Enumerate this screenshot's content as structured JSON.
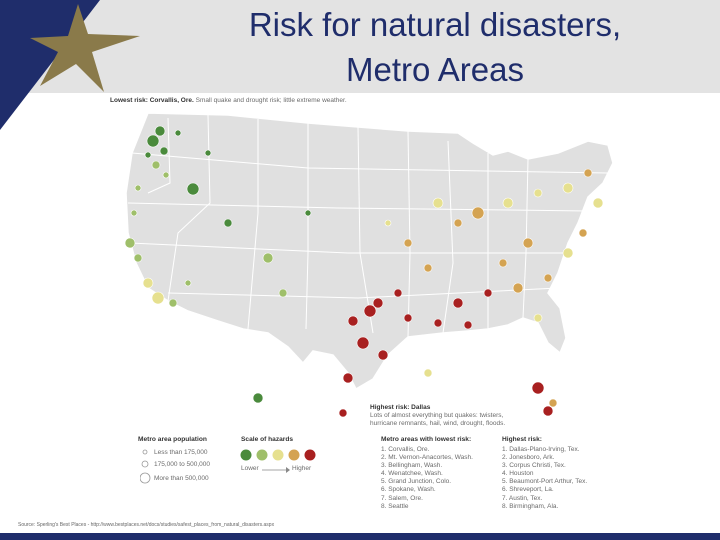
{
  "title": {
    "line1": "Risk for natural disasters,",
    "line2": "Metro Areas"
  },
  "lowest_callout": {
    "label": "Lowest risk: Corvallis, Ore.",
    "detail": "Small quake and drought risk; little extreme weather."
  },
  "highest_callout": {
    "label": "Highest risk: Dallas",
    "detail_line1": "Lots of almost everything but quakes: twisters,",
    "detail_line2": "hurricane remnants, hail, wind, drought, floods."
  },
  "legend": {
    "population_title": "Metro area population",
    "population_items": [
      "Less than 175,000",
      "175,000 to 500,000",
      "More than 500,000"
    ],
    "hazard_title": "Scale of hazards",
    "hazard_lower": "Lower",
    "hazard_higher": "Higher",
    "hazard_colors": [
      "#4a8a3c",
      "#9fbf6a",
      "#e6e08f",
      "#d4a352",
      "#a82020"
    ]
  },
  "lowest_list": {
    "title": "Metro areas with lowest risk:",
    "items": [
      "1. Corvallis, Ore.",
      "2. Mt. Vernon-Anacortes, Wash.",
      "3. Bellingham, Wash.",
      "4. Wenatchee, Wash.",
      "5. Grand Junction, Colo.",
      "6. Spokane, Wash.",
      "7. Salem, Ore.",
      "8. Seattle"
    ]
  },
  "highest_list": {
    "title": "Highest risk:",
    "items": [
      "1. Dallas-Plano-Irving, Tex.",
      "2. Jonesboro, Ark.",
      "3. Corpus Christi, Tex.",
      "4. Houston",
      "5. Beaumont-Port Arthur, Tex.",
      "6. Shreveport, La.",
      "7. Austin, Tex.",
      "8. Birmingham, Ala."
    ]
  },
  "source": "Source: Sperling's Best Places - http://www.bestplaces.net/docs/studies/safest_places_from_natural_disasters.aspx",
  "colors": {
    "brand_blue": "#1f2d6b",
    "star_gold": "#8a7a4a",
    "map_land": "#e0e0e0"
  },
  "icons": {
    "logo": "star-icon"
  }
}
